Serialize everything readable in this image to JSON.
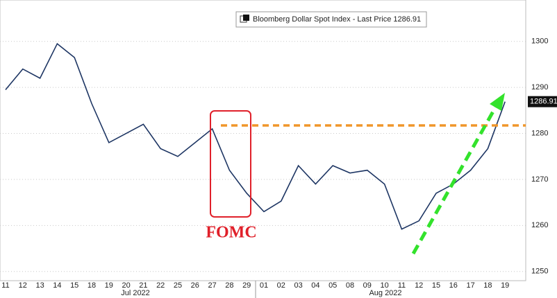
{
  "chart_data": {
    "type": "line",
    "series": [
      {
        "name": "Bloomberg Dollar Spot Index - Last Price 1286.91",
        "color": "#1d3563",
        "values": [
          1289.5,
          1294,
          1292,
          1299.5,
          1296.5,
          1286.5,
          1278,
          1280,
          1282,
          1276.7,
          1275,
          1278,
          1281,
          1272,
          1267,
          1263,
          1265.3,
          1273,
          1269,
          1273,
          1271.4,
          1272,
          1269,
          1259.2,
          1261,
          1267,
          1269,
          1272,
          1276.7,
          1286.91
        ]
      }
    ],
    "categories": [
      "11",
      "12",
      "13",
      "14",
      "15",
      "18",
      "19",
      "20",
      "21",
      "22",
      "25",
      "26",
      "27",
      "28",
      "29",
      "01",
      "02",
      "03",
      "04",
      "05",
      "08",
      "09",
      "10",
      "11",
      "12",
      "15",
      "16",
      "17",
      "18",
      "19"
    ],
    "month_labels": [
      "Jul 2022",
      "Aug 2022"
    ],
    "ylim": [
      1248,
      1309
    ],
    "yticks": [
      1250,
      1260,
      1270,
      1280,
      1290,
      1300
    ],
    "last_price": 1286.91,
    "annotation": "FOMC",
    "grid": true
  }
}
